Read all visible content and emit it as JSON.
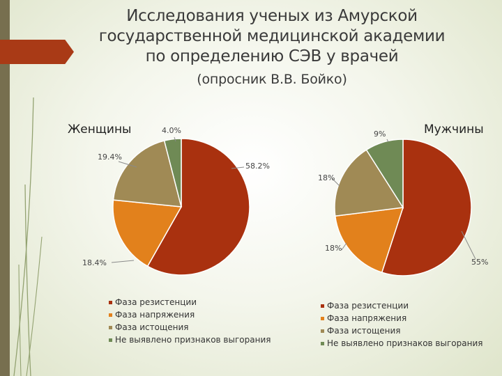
{
  "slide": {
    "title_lines": [
      "Исследования ученых из Амурской",
      "государственной медицинской академии",
      "по определению СЭВ у врачей"
    ],
    "subtitle": "(опросник  В.В. Бойко)"
  },
  "colors": {
    "accent_red": "#a93a16",
    "sidebar": "#776f4f",
    "leader_line": "#8a8a8a"
  },
  "chart_data": [
    {
      "type": "pie",
      "title": "Женщины",
      "categories": [
        "Фаза резистенции",
        "Фаза напряжения",
        "Фаза истощения",
        "Не выявлено признаков выгорания"
      ],
      "values": [
        58.2,
        18.4,
        19.4,
        4.0
      ],
      "labels": [
        "58.2%",
        "18.4%",
        "19.4%",
        "4.0%"
      ],
      "colors": [
        "#a9310f",
        "#e2811c",
        "#a08a55",
        "#6f8a55"
      ],
      "start_angle_deg": 0,
      "direction": "clockwise",
      "legend_position": "bottom"
    },
    {
      "type": "pie",
      "title": "Мужчины",
      "categories": [
        "Фаза резистенции",
        "Фаза напряжения",
        "Фаза истощения",
        "Не выявлено признаков выгорания"
      ],
      "values": [
        55,
        18,
        18,
        9
      ],
      "labels": [
        "55%",
        "18%",
        "18%",
        "9%"
      ],
      "colors": [
        "#a9310f",
        "#e2811c",
        "#a08a55",
        "#6f8a55"
      ],
      "start_angle_deg": 0,
      "direction": "clockwise",
      "legend_position": "bottom"
    }
  ]
}
